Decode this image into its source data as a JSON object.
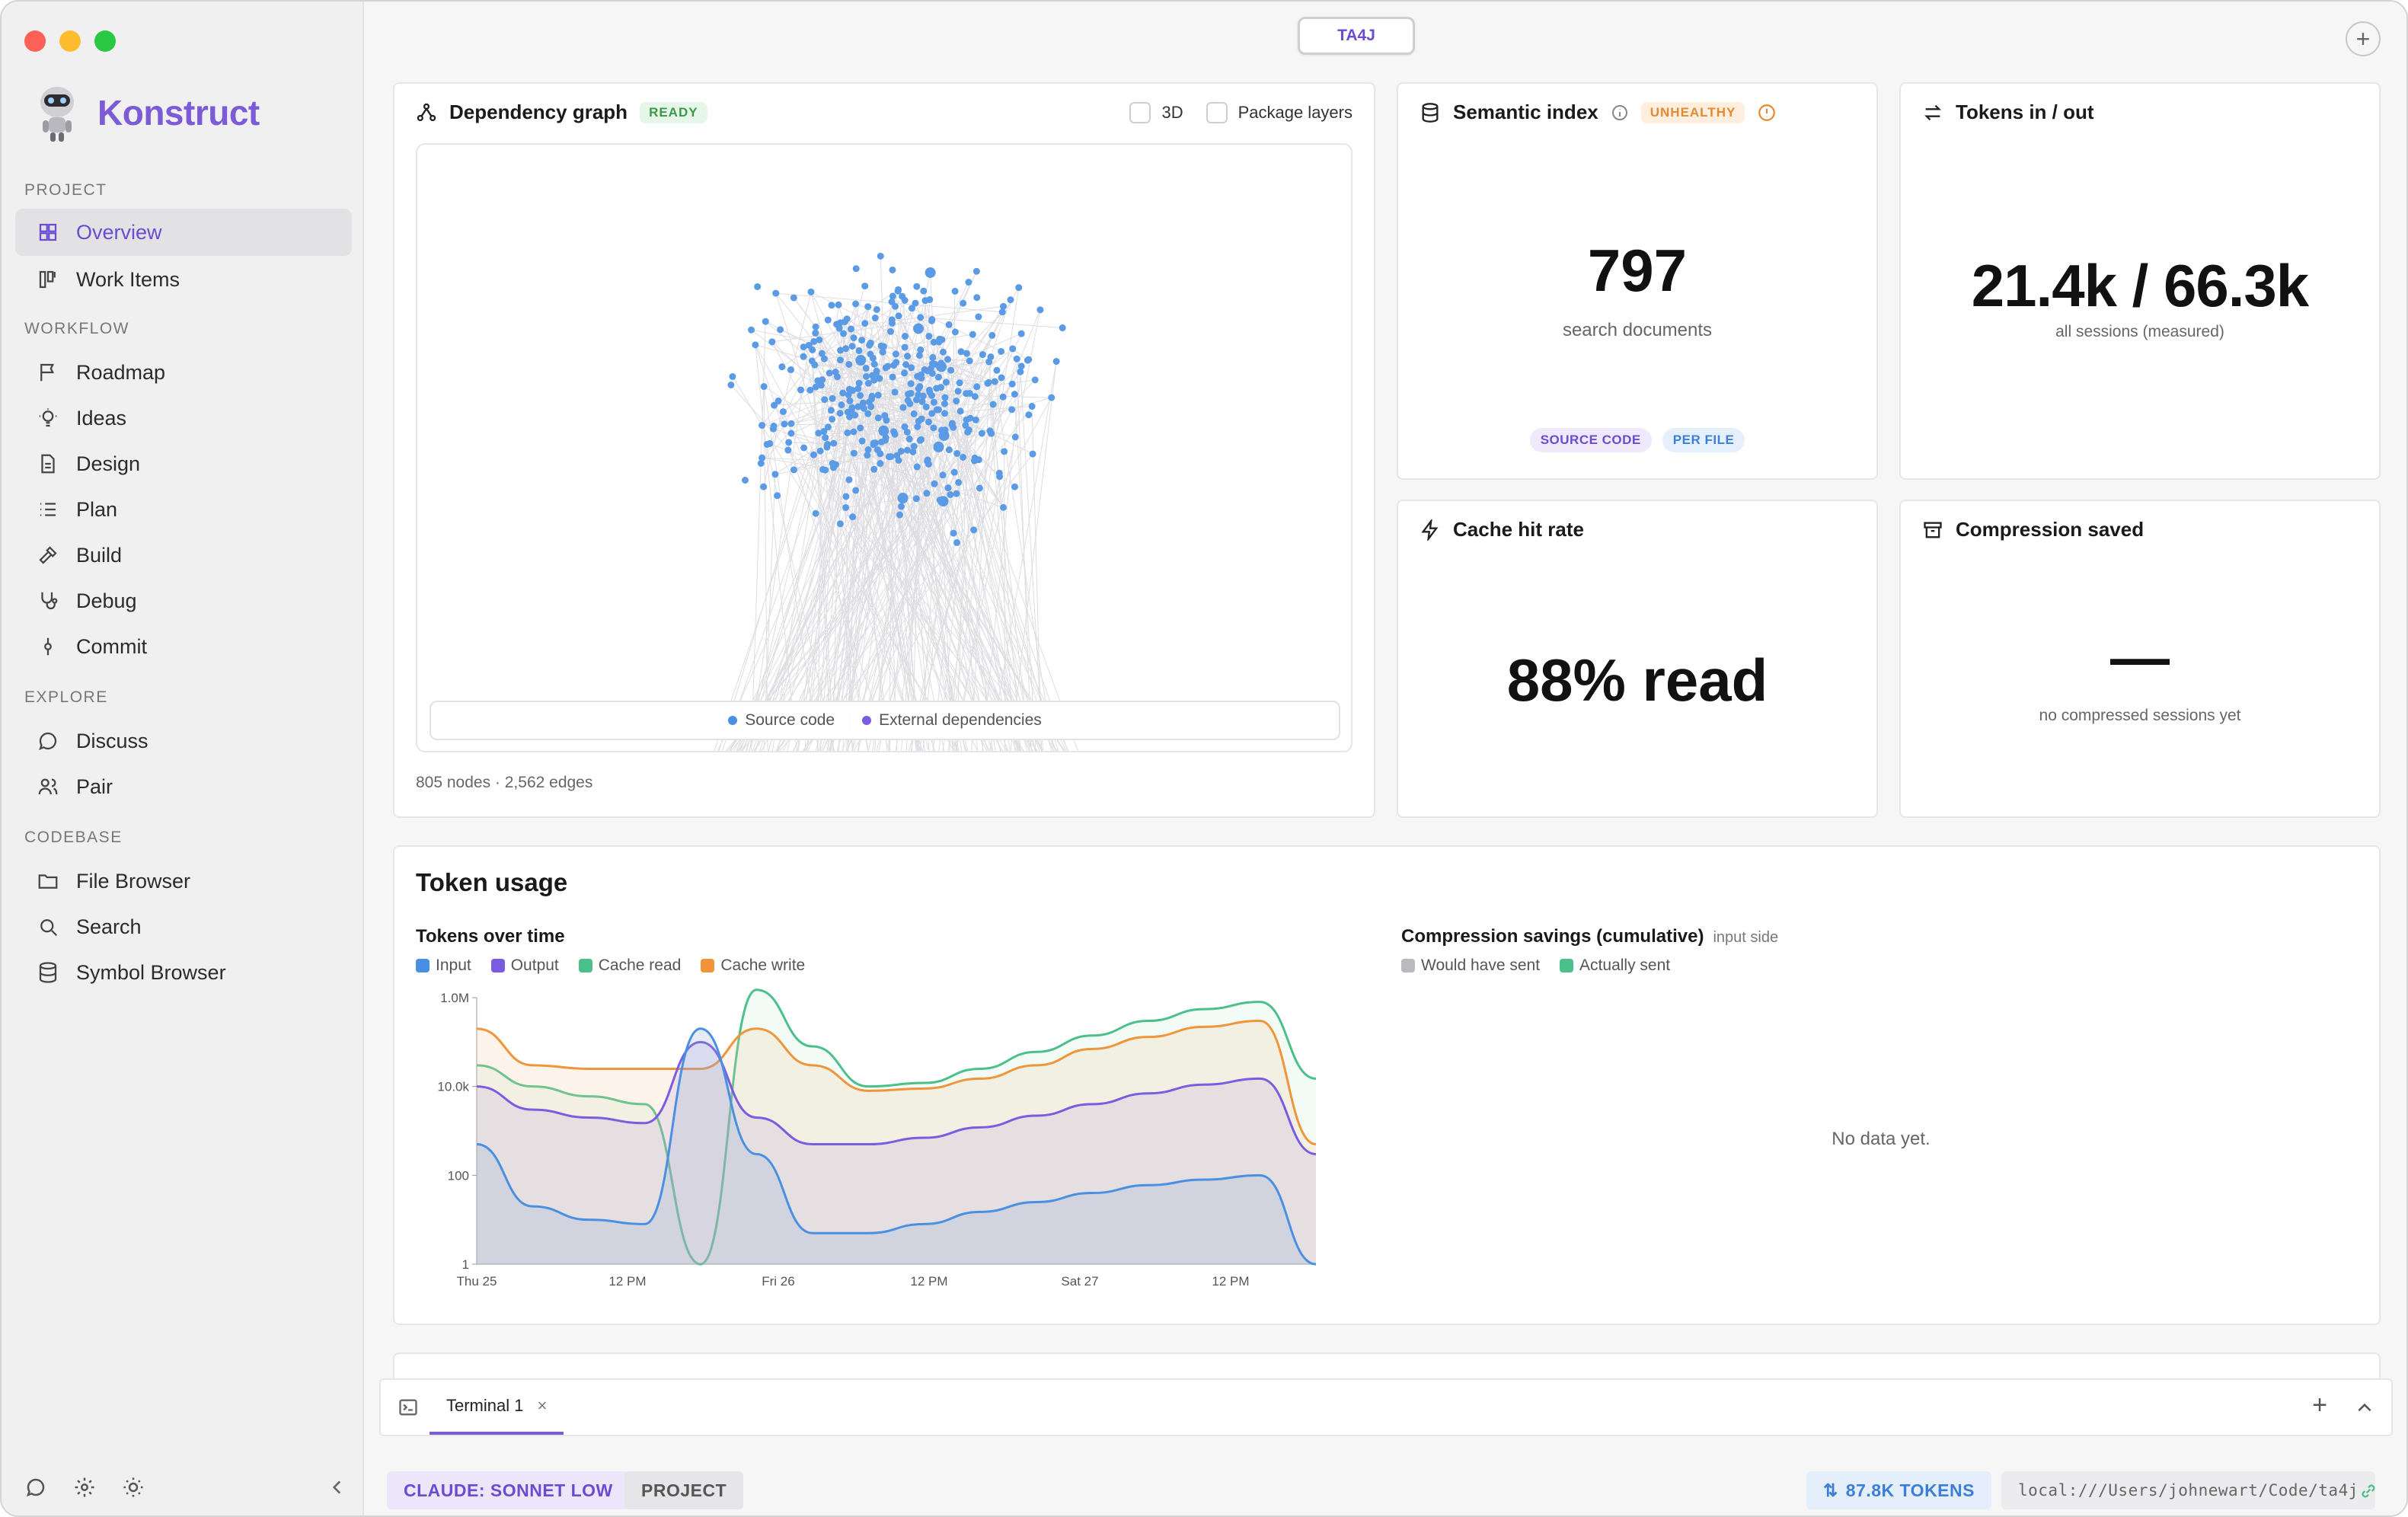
{
  "app": {
    "name": "Konstruct",
    "project_code": "TA4J"
  },
  "sidebar": {
    "sections": [
      {
        "title": "PROJECT",
        "items": [
          {
            "label": "Overview",
            "icon": "grid-icon"
          },
          {
            "label": "Work Items",
            "icon": "kanban-icon"
          }
        ]
      },
      {
        "title": "WORKFLOW",
        "items": [
          {
            "label": "Roadmap",
            "icon": "flag-icon"
          },
          {
            "label": "Ideas",
            "icon": "lightbulb-icon"
          },
          {
            "label": "Design",
            "icon": "document-icon"
          },
          {
            "label": "Plan",
            "icon": "list-icon"
          },
          {
            "label": "Build",
            "icon": "hammer-icon"
          },
          {
            "label": "Debug",
            "icon": "stethoscope-icon"
          },
          {
            "label": "Commit",
            "icon": "commit-icon"
          }
        ]
      },
      {
        "title": "EXPLORE",
        "items": [
          {
            "label": "Discuss",
            "icon": "chat-icon"
          },
          {
            "label": "Pair",
            "icon": "users-icon"
          }
        ]
      },
      {
        "title": "CODEBASE",
        "items": [
          {
            "label": "File Browser",
            "icon": "folder-icon"
          },
          {
            "label": "Search",
            "icon": "search-icon"
          },
          {
            "label": "Symbol Browser",
            "icon": "database-icon"
          }
        ]
      }
    ],
    "active_item": "Overview"
  },
  "dependency_graph": {
    "title": "Dependency graph",
    "status": "READY",
    "option_3d": "3D",
    "option_packages": "Package layers",
    "legend_source": "Source code",
    "legend_external": "External dependencies",
    "summary": "805 nodes · 2,562 edges"
  },
  "semantic_index": {
    "title": "Semantic index",
    "status": "UNHEALTHY",
    "value": "797",
    "caption": "search documents",
    "tags": [
      "SOURCE CODE",
      "PER FILE"
    ]
  },
  "tokens_io": {
    "title": "Tokens in / out",
    "value": "21.4k / 66.3k",
    "caption": "all sessions (measured)"
  },
  "cache_hit": {
    "title": "Cache hit rate",
    "value": "88% read"
  },
  "compression_saved": {
    "title": "Compression saved",
    "value": "—",
    "caption": "no compressed sessions yet"
  },
  "token_usage": {
    "title": "Token usage",
    "over_time_title": "Tokens over time",
    "compression_title": "Compression savings (cumulative)",
    "compression_note": "input side",
    "compression_legend": [
      "Would have sent",
      "Actually sent"
    ],
    "empty_message": "No data yet."
  },
  "chart_data": {
    "type": "area",
    "title": "Tokens over time",
    "y_scale": "log",
    "y_ticks": [
      "1.0M",
      "10.0k",
      "100",
      "1"
    ],
    "x_ticks": [
      "Thu 25",
      "12 PM",
      "Fri 26",
      "12 PM",
      "Sat 27",
      "12 PM"
    ],
    "series": [
      {
        "name": "Input",
        "color": "#4a90e2",
        "values": [
          500,
          20,
          10,
          8,
          200000,
          300,
          5,
          5,
          8,
          15,
          25,
          40,
          60,
          80,
          100,
          1
        ]
      },
      {
        "name": "Output",
        "color": "#7b5ce0",
        "values": [
          10000,
          3000,
          2000,
          1500,
          100000,
          2000,
          500,
          500,
          700,
          1200,
          2200,
          4000,
          7000,
          11000,
          15000,
          300
        ]
      },
      {
        "name": "Cache read",
        "color": "#4cc08a",
        "values": [
          30000,
          10000,
          6000,
          4000,
          1,
          1500000,
          80000,
          10000,
          12000,
          25000,
          60000,
          140000,
          300000,
          550000,
          800000,
          15000
        ]
      },
      {
        "name": "Cache write",
        "color": "#f0953a",
        "values": [
          200000,
          30000,
          25000,
          25000,
          25000,
          200000,
          30000,
          8000,
          9000,
          15000,
          30000,
          70000,
          130000,
          220000,
          300000,
          500
        ]
      }
    ]
  },
  "terminal": {
    "tab": "Terminal 1"
  },
  "statusbar": {
    "model": "CLAUDE: SONNET LOW",
    "scope": "PROJECT",
    "tokens": "87.8K TOKENS",
    "path": "local:///Users/johnewart/Code/ta4j"
  },
  "colors": {
    "accent": "#7c5cd6",
    "ready": "#3a9a4a",
    "unhealthy": "#e4892e"
  }
}
